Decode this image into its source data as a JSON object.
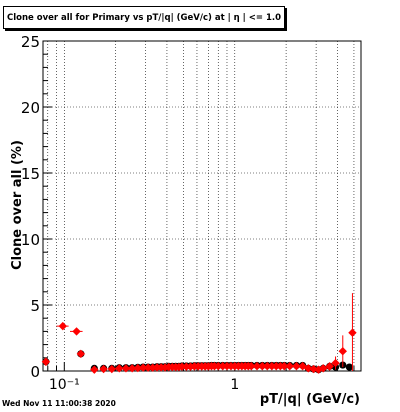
{
  "chart_data": {
    "type": "scatter",
    "title": "Clone  over all for Primary vs pT/|q| (GeV/c) at |  η | <= 1.0",
    "xlabel": "pT/|q| (GeV/c)",
    "ylabel": "Clone  over all (%)",
    "xscale": "log",
    "xlim": [
      0.075,
      5.5
    ],
    "ylim": [
      0,
      25
    ],
    "grid": true,
    "yticks": [
      "0",
      "5",
      "10",
      "15",
      "20",
      "25"
    ],
    "xticks": [
      "10⁻¹",
      "1"
    ],
    "series": [
      {
        "color": "#000000",
        "marker": "circle",
        "points": [
          [
            0.078,
            0.7,
            0,
            0.005
          ],
          [
            0.125,
            1.3,
            0,
            0.01
          ],
          [
            0.15,
            0.2,
            0,
            0.015
          ],
          [
            0.17,
            0.2,
            0,
            0.015
          ],
          [
            0.19,
            0.2,
            0,
            0.015
          ],
          [
            0.21,
            0.25,
            0,
            0.015
          ],
          [
            0.23,
            0.25,
            0,
            0.015
          ],
          [
            0.25,
            0.25,
            0,
            0.015
          ],
          [
            0.27,
            0.28,
            0,
            0.015
          ],
          [
            0.29,
            0.3,
            0,
            0.015
          ],
          [
            0.31,
            0.3,
            0,
            0.015
          ],
          [
            0.33,
            0.3,
            0,
            0.015
          ],
          [
            0.35,
            0.32,
            0,
            0.015
          ],
          [
            0.37,
            0.32,
            0,
            0.015
          ],
          [
            0.39,
            0.32,
            0,
            0.015
          ],
          [
            0.41,
            0.35,
            0,
            0.015
          ],
          [
            0.43,
            0.35,
            0,
            0.015
          ],
          [
            0.45,
            0.35,
            0,
            0.015
          ],
          [
            0.47,
            0.35,
            0,
            0.015
          ],
          [
            0.49,
            0.38,
            0,
            0.015
          ],
          [
            0.52,
            0.38,
            0,
            0.02
          ],
          [
            0.55,
            0.38,
            0,
            0.02
          ],
          [
            0.58,
            0.4,
            0,
            0.02
          ],
          [
            0.61,
            0.4,
            0,
            0.02
          ],
          [
            0.64,
            0.4,
            0,
            0.02
          ],
          [
            0.67,
            0.4,
            0,
            0.02
          ],
          [
            0.7,
            0.4,
            0,
            0.02
          ],
          [
            0.73,
            0.42,
            0,
            0.02
          ],
          [
            0.76,
            0.42,
            0,
            0.02
          ],
          [
            0.8,
            0.42,
            0,
            0.02
          ],
          [
            0.85,
            0.42,
            0,
            0.02
          ],
          [
            0.9,
            0.42,
            0,
            0.02
          ],
          [
            0.95,
            0.42,
            0,
            0.02
          ],
          [
            1.0,
            0.42,
            0,
            0.02
          ],
          [
            1.05,
            0.42,
            0,
            0.02
          ],
          [
            1.1,
            0.42,
            0,
            0.02
          ],
          [
            1.15,
            0.42,
            0,
            0.02
          ],
          [
            1.2,
            0.42,
            0,
            0.02
          ],
          [
            1.25,
            0.42,
            0,
            0.02
          ],
          [
            1.35,
            0.42,
            0,
            0.02
          ],
          [
            1.45,
            0.42,
            0,
            0.02
          ],
          [
            1.55,
            0.42,
            0,
            0.02
          ],
          [
            1.65,
            0.42,
            0,
            0.02
          ],
          [
            1.75,
            0.42,
            0,
            0.02
          ],
          [
            1.85,
            0.42,
            0,
            0.02
          ],
          [
            1.95,
            0.42,
            0,
            0.02
          ],
          [
            2.1,
            0.42,
            0,
            0.02
          ],
          [
            2.3,
            0.42,
            0,
            0.02
          ],
          [
            2.5,
            0.42,
            0,
            0.02
          ],
          [
            2.7,
            0.2,
            0,
            0.02
          ],
          [
            2.9,
            0.15,
            0,
            0.02
          ],
          [
            3.1,
            0.1,
            0,
            0.02
          ],
          [
            3.3,
            0.2,
            0,
            0.02
          ],
          [
            3.6,
            0.35,
            0,
            0.02
          ],
          [
            3.9,
            0.3,
            0,
            0.02
          ],
          [
            4.3,
            0.45,
            0,
            0.02
          ],
          [
            4.7,
            0.3,
            0,
            0.02
          ]
        ]
      },
      {
        "color": "#ff0000",
        "marker": "diamond",
        "points": [
          [
            0.078,
            0.7,
            0.003,
            0.3
          ],
          [
            0.098,
            3.4,
            0.008,
            0.15
          ],
          [
            0.118,
            3.0,
            0.01,
            0.15
          ],
          [
            0.125,
            1.3,
            0.003,
            0.25
          ],
          [
            0.15,
            0.1,
            0,
            0
          ],
          [
            0.17,
            0.15,
            0,
            0
          ],
          [
            0.19,
            0.15,
            0,
            0
          ],
          [
            0.21,
            0.2,
            0,
            0
          ],
          [
            0.23,
            0.2,
            0,
            0
          ],
          [
            0.25,
            0.2,
            0,
            0
          ],
          [
            0.27,
            0.22,
            0,
            0
          ],
          [
            0.29,
            0.25,
            0,
            0
          ],
          [
            0.31,
            0.25,
            0,
            0
          ],
          [
            0.33,
            0.25,
            0,
            0
          ],
          [
            0.35,
            0.27,
            0,
            0
          ],
          [
            0.37,
            0.27,
            0,
            0
          ],
          [
            0.39,
            0.27,
            0,
            0
          ],
          [
            0.41,
            0.3,
            0,
            0
          ],
          [
            0.43,
            0.3,
            0,
            0
          ],
          [
            0.45,
            0.3,
            0,
            0
          ],
          [
            0.47,
            0.3,
            0,
            0
          ],
          [
            0.49,
            0.33,
            0,
            0
          ],
          [
            0.52,
            0.33,
            0,
            0
          ],
          [
            0.55,
            0.33,
            0,
            0
          ],
          [
            0.58,
            0.35,
            0,
            0
          ],
          [
            0.61,
            0.35,
            0,
            0
          ],
          [
            0.64,
            0.35,
            0,
            0
          ],
          [
            0.67,
            0.35,
            0,
            0
          ],
          [
            0.7,
            0.35,
            0,
            0
          ],
          [
            0.73,
            0.37,
            0,
            0
          ],
          [
            0.76,
            0.37,
            0,
            0
          ],
          [
            0.8,
            0.37,
            0,
            0
          ],
          [
            0.85,
            0.37,
            0,
            0
          ],
          [
            0.9,
            0.37,
            0,
            0
          ],
          [
            0.95,
            0.37,
            0,
            0
          ],
          [
            1.0,
            0.37,
            0,
            0
          ],
          [
            1.05,
            0.37,
            0,
            0
          ],
          [
            1.1,
            0.37,
            0,
            0
          ],
          [
            1.15,
            0.37,
            0,
            0
          ],
          [
            1.2,
            0.37,
            0,
            0
          ],
          [
            1.25,
            0.37,
            0,
            0
          ],
          [
            1.35,
            0.37,
            0,
            0
          ],
          [
            1.45,
            0.37,
            0,
            0
          ],
          [
            1.55,
            0.37,
            0,
            0
          ],
          [
            1.65,
            0.37,
            0,
            0
          ],
          [
            1.75,
            0.37,
            0,
            0
          ],
          [
            1.85,
            0.37,
            0,
            0
          ],
          [
            1.95,
            0.37,
            0,
            0
          ],
          [
            2.1,
            0.37,
            0,
            0
          ],
          [
            2.3,
            0.37,
            0,
            0
          ],
          [
            2.5,
            0.37,
            0,
            0
          ],
          [
            2.7,
            0.2,
            0,
            0.2
          ],
          [
            2.9,
            0.15,
            0,
            0.2
          ],
          [
            3.1,
            0.1,
            0,
            0.2
          ],
          [
            3.3,
            0.2,
            0,
            0.3
          ],
          [
            3.6,
            0.35,
            0,
            0.3
          ],
          [
            3.9,
            0.6,
            0,
            0.5
          ],
          [
            4.3,
            1.5,
            0,
            1.2
          ],
          [
            4.9,
            2.9,
            0,
            3.0
          ]
        ]
      }
    ]
  },
  "timestamp": "Wed Nov 11 11:00:38 2020"
}
